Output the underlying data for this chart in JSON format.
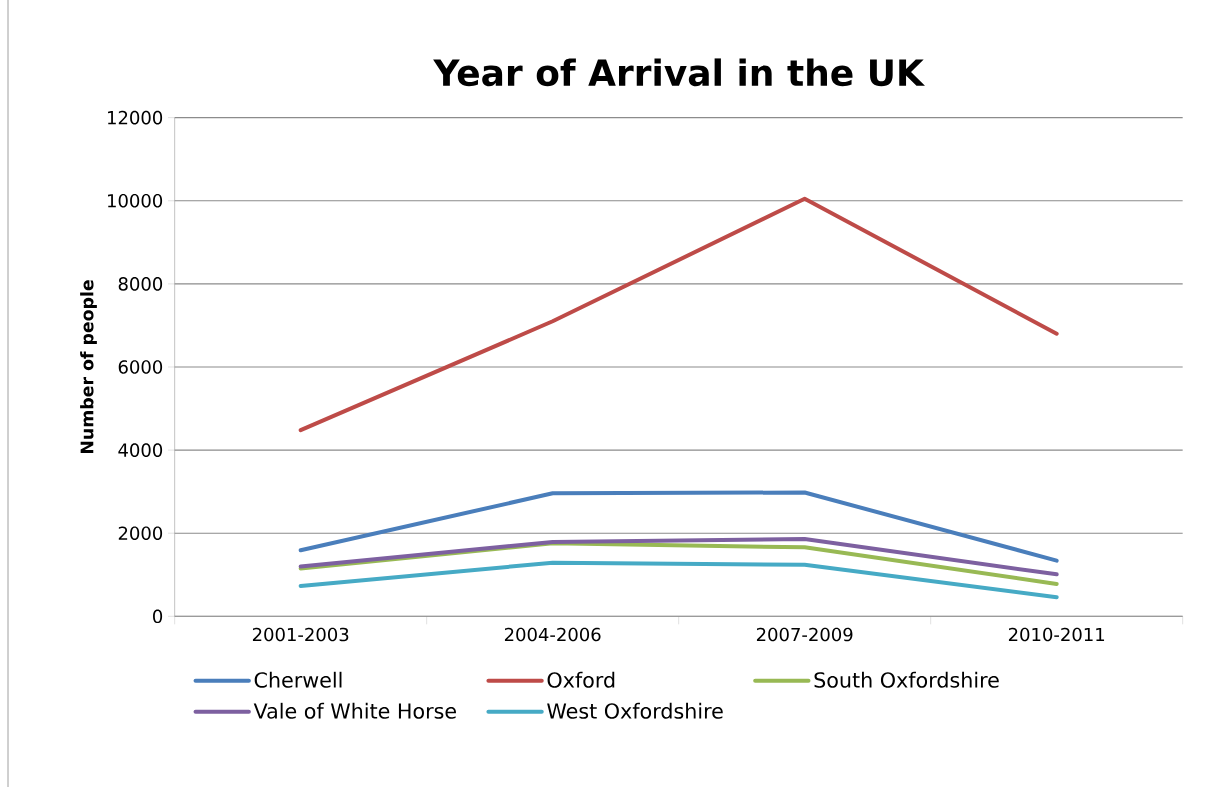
{
  "chart_data": {
    "type": "line",
    "title": "Year of Arrival in the UK",
    "ylabel": "Number of people",
    "categories": [
      "2001-2003",
      "2004-2006",
      "2007-2009",
      "2010-2011"
    ],
    "ylim": [
      0,
      12000
    ],
    "yticks": [
      0,
      2000,
      4000,
      6000,
      8000,
      10000,
      12000
    ],
    "grid": "y",
    "legend": "bottom",
    "marker": "none",
    "line_style": "solid",
    "series": [
      {
        "name": "Cherwell",
        "color": "#4a7ebb",
        "values": [
          1590,
          2960,
          2980,
          1340
        ]
      },
      {
        "name": "Oxford",
        "color": "#be4b48",
        "values": [
          4480,
          7100,
          10050,
          6800
        ]
      },
      {
        "name": "South Oxfordshire",
        "color": "#98b954",
        "values": [
          1150,
          1760,
          1660,
          780
        ]
      },
      {
        "name": "Vale of White Horse",
        "color": "#7d60a0",
        "values": [
          1200,
          1790,
          1860,
          1010
        ]
      },
      {
        "name": "West Oxfordshire",
        "color": "#46aac5",
        "values": [
          730,
          1290,
          1240,
          460
        ]
      }
    ]
  }
}
